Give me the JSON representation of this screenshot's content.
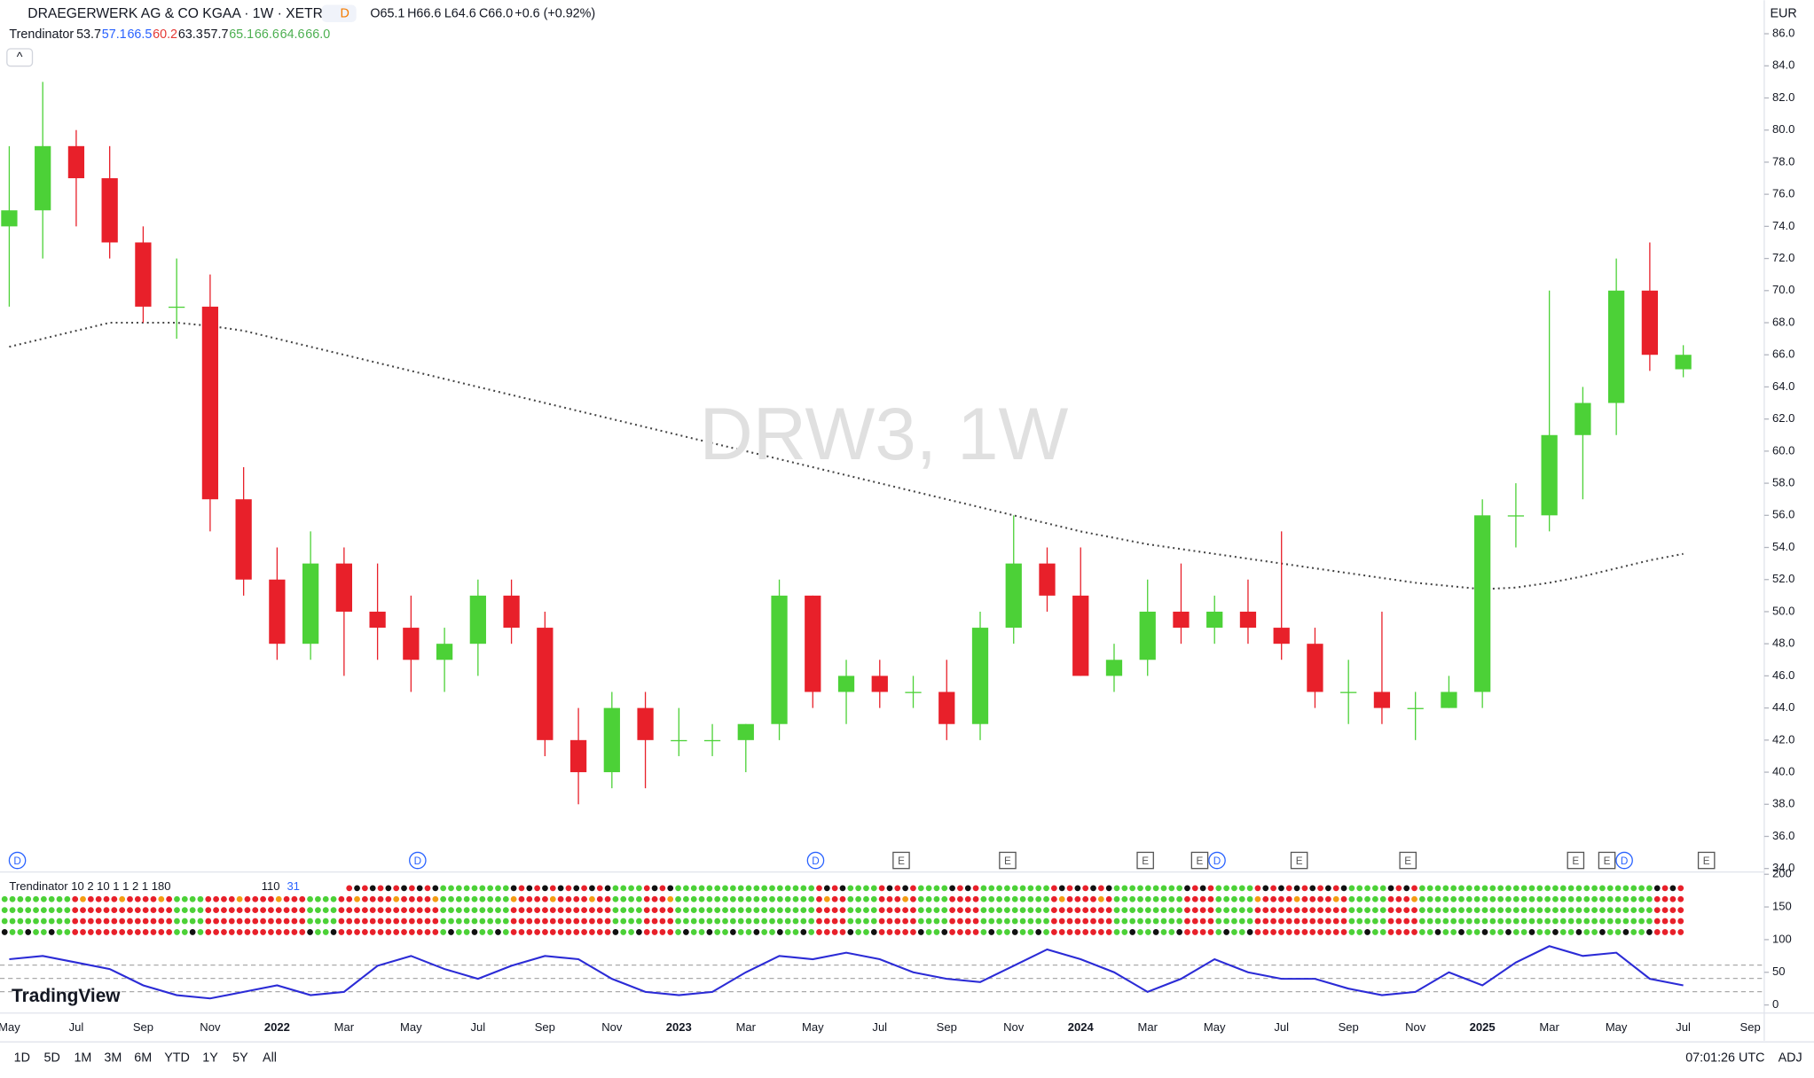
{
  "header": {
    "symbol": "DRAEGERWERK AG & CO KGAA · 1W · XETR",
    "badge": "D",
    "open": "O65.1",
    "high": "H66.6",
    "low": "L64.6",
    "close": "C66.0",
    "change": "+0.6 (+0.92%)",
    "currency": "EUR"
  },
  "indicator_legend": {
    "name": "Trendinator",
    "values": [
      {
        "text": "53.7",
        "color": "#131722"
      },
      {
        "text": "57.1",
        "color": "#2962ff"
      },
      {
        "text": "66.5",
        "color": "#2962ff"
      },
      {
        "text": "60.2",
        "color": "#e53935"
      },
      {
        "text": "63.3",
        "color": "#131722"
      },
      {
        "text": "57.7",
        "color": "#131722"
      },
      {
        "text": "65.1",
        "color": "#4caf50"
      },
      {
        "text": "66.6",
        "color": "#4caf50"
      },
      {
        "text": "64.6",
        "color": "#4caf50"
      },
      {
        "text": "66.0",
        "color": "#4caf50"
      }
    ]
  },
  "watermark": "DRW3, 1W",
  "chart_data": {
    "type": "candlestick",
    "up_color": "#4cd137",
    "down_color": "#e8202a",
    "ma_color": "#444444",
    "open": [
      74,
      75,
      79,
      77,
      73,
      69,
      69,
      57,
      52,
      48,
      53,
      50,
      49,
      47,
      48,
      51,
      49,
      42,
      40,
      44,
      42,
      42,
      42,
      43,
      51,
      45,
      46,
      45,
      45,
      43,
      49,
      53,
      51,
      46,
      47,
      50,
      49,
      50,
      49,
      48,
      45,
      45,
      44,
      44,
      45,
      56,
      56,
      61,
      63,
      70,
      65.1
    ],
    "high": [
      79,
      83,
      80,
      79,
      74,
      72,
      71,
      59,
      54,
      55,
      54,
      53,
      51,
      49,
      52,
      52,
      50,
      44,
      45,
      45,
      44,
      43,
      43,
      52,
      51,
      47,
      47,
      46,
      47,
      50,
      56,
      54,
      54,
      48,
      52,
      53,
      51,
      52,
      55,
      49,
      47,
      50,
      45,
      46,
      57,
      58,
      70,
      64,
      72,
      73,
      66.6
    ],
    "low": [
      69,
      72,
      74,
      72,
      68,
      67,
      55,
      51,
      47,
      47,
      46,
      47,
      45,
      45,
      46,
      48,
      41,
      38,
      39,
      39,
      41,
      41,
      40,
      42,
      44,
      43,
      44,
      44,
      42,
      42,
      48,
      50,
      46,
      45,
      46,
      48,
      48,
      48,
      47,
      44,
      43,
      43,
      42,
      44,
      44,
      54,
      55,
      57,
      61,
      65,
      64.6
    ],
    "close": [
      75,
      79,
      77,
      73,
      69,
      69,
      57,
      52,
      48,
      53,
      50,
      49,
      47,
      48,
      51,
      49,
      42,
      40,
      44,
      42,
      42,
      42,
      43,
      51,
      45,
      46,
      45,
      45,
      43,
      49,
      53,
      51,
      46,
      47,
      50,
      49,
      50,
      49,
      48,
      45,
      45,
      44,
      44,
      45,
      56,
      56,
      61,
      63,
      70,
      66,
      66.0
    ],
    "ma": [
      66.5,
      67,
      67.5,
      68,
      68,
      68,
      67.8,
      67.5,
      67,
      66.5,
      66,
      65.5,
      65,
      64.5,
      64,
      63.5,
      63,
      62.5,
      62,
      61.5,
      61,
      60.5,
      60,
      59.5,
      59,
      58.5,
      58,
      57.5,
      57,
      56.5,
      56,
      55.5,
      55,
      54.6,
      54.2,
      53.9,
      53.6,
      53.3,
      53,
      52.7,
      52.4,
      52.1,
      51.8,
      51.6,
      51.4,
      51.5,
      51.8,
      52.2,
      52.7,
      53.2,
      53.6
    ],
    "ylim": [
      34,
      86
    ],
    "yticks": [
      {
        "value": 34,
        "label": "34.0"
      },
      {
        "value": 36,
        "label": "36.0"
      },
      {
        "value": 38,
        "label": "38.0"
      },
      {
        "value": 40,
        "label": "40.0"
      },
      {
        "value": 42,
        "label": "42.0"
      },
      {
        "value": 44,
        "label": "44.0"
      },
      {
        "value": 46,
        "label": "46.0"
      },
      {
        "value": 48,
        "label": "48.0"
      },
      {
        "value": 50,
        "label": "50.0"
      },
      {
        "value": 52,
        "label": "52.0"
      },
      {
        "value": 54,
        "label": "54.0"
      },
      {
        "value": 56,
        "label": "56.0"
      },
      {
        "value": 58,
        "label": "58.0"
      },
      {
        "value": 60,
        "label": "60.0"
      },
      {
        "value": 62,
        "label": "62.0"
      },
      {
        "value": 64,
        "label": "64.0"
      },
      {
        "value": 66,
        "label": "66.0"
      },
      {
        "value": 68,
        "label": "68.0"
      },
      {
        "value": 70,
        "label": "70.0"
      },
      {
        "value": 72,
        "label": "72.0"
      },
      {
        "value": 74,
        "label": "74.0"
      },
      {
        "value": 76,
        "label": "76.0"
      },
      {
        "value": 78,
        "label": "78.0"
      },
      {
        "value": 80,
        "label": "80.0"
      },
      {
        "value": 82,
        "label": "82.0"
      },
      {
        "value": 84,
        "label": "84.0"
      },
      {
        "value": 86,
        "label": "86.0"
      }
    ],
    "time_labels": [
      "May",
      "Jul",
      "Sep",
      "Nov",
      "2022",
      "Mar",
      "May",
      "Jul",
      "Sep",
      "Nov",
      "2023",
      "Mar",
      "May",
      "Jul",
      "Sep",
      "Nov",
      "2024",
      "Mar",
      "May",
      "Jul",
      "Sep",
      "Nov",
      "2025",
      "Mar",
      "May",
      "Jul",
      "Sep"
    ],
    "events": [
      "D",
      "D",
      "D",
      "E",
      "E",
      "E",
      "E",
      "D",
      "E",
      "E",
      "E",
      "E",
      "D",
      "E"
    ],
    "oscillator": {
      "title": "Trendinator 10 2 10 1 1 2 1 180",
      "extra": [
        "110",
        "31"
      ],
      "color": "#2b2bd6",
      "values": [
        70,
        75,
        65,
        55,
        30,
        15,
        10,
        20,
        30,
        15,
        20,
        60,
        75,
        55,
        40,
        60,
        75,
        70,
        40,
        20,
        15,
        20,
        50,
        75,
        70,
        80,
        70,
        50,
        40,
        35,
        60,
        85,
        70,
        50,
        20,
        40,
        70,
        50,
        40,
        40,
        25,
        15,
        20,
        50,
        30,
        65,
        90,
        75,
        80,
        40,
        30
      ],
      "ylim": [
        0,
        200
      ],
      "yticks": [
        0,
        50,
        100,
        150,
        200
      ]
    }
  },
  "footer": {
    "logo": "TradingView",
    "ranges": [
      "1D",
      "5D",
      "1M",
      "3M",
      "6M",
      "YTD",
      "1Y",
      "5Y",
      "All"
    ],
    "time": "07:01:26 UTC",
    "adj": "ADJ"
  }
}
